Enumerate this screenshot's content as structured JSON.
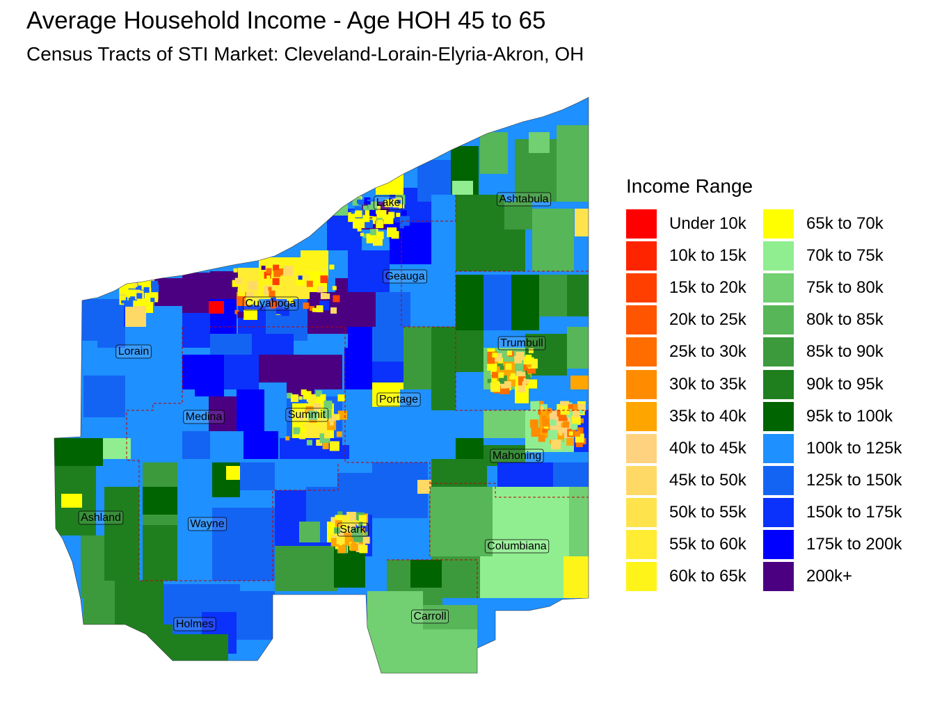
{
  "title": "Average Household Income - Age HOH 45 to 65",
  "subtitle": "Census Tracts of STI Market: Cleveland-Lorain-Elyria-Akron, OH",
  "legend": {
    "title": "Income Range",
    "items": [
      {
        "label": "Under 10k",
        "color": "#FF0000"
      },
      {
        "label": "10k to 15k",
        "color": "#FF2400"
      },
      {
        "label": "15k to 20k",
        "color": "#FF3F00"
      },
      {
        "label": "20k to 25k",
        "color": "#FF5500"
      },
      {
        "label": "25k to 30k",
        "color": "#FF6D00"
      },
      {
        "label": "30k to 35k",
        "color": "#FF8C00"
      },
      {
        "label": "35k to 40k",
        "color": "#FFA500"
      },
      {
        "label": "40k to 45k",
        "color": "#FFD27F"
      },
      {
        "label": "45k to 50k",
        "color": "#FFD966"
      },
      {
        "label": "50k to 55k",
        "color": "#FFE34D"
      },
      {
        "label": "55k to 60k",
        "color": "#FFEC33"
      },
      {
        "label": "60k to 65k",
        "color": "#FFF41A"
      },
      {
        "label": "65k to 70k",
        "color": "#FFFF00"
      },
      {
        "label": "70k to 75k",
        "color": "#90EE90"
      },
      {
        "label": "75k to 80k",
        "color": "#72CF72"
      },
      {
        "label": "80k to 85k",
        "color": "#57B657"
      },
      {
        "label": "85k to 90k",
        "color": "#3C9A3C"
      },
      {
        "label": "90k to 95k",
        "color": "#1F7F1F"
      },
      {
        "label": "95k to 100k",
        "color": "#006400"
      },
      {
        "label": "100k to 125k",
        "color": "#1E90FF"
      },
      {
        "label": "125k to 150k",
        "color": "#1464F4"
      },
      {
        "label": "150k to 175k",
        "color": "#0A32FA"
      },
      {
        "label": "175k to 200k",
        "color": "#0000FF"
      },
      {
        "label": "200k+",
        "color": "#4B0082"
      }
    ]
  },
  "counties": [
    "Lake",
    "Ashtabula",
    "Geauga",
    "Cuyahoga",
    "Lorain",
    "Trumbull",
    "Portage",
    "Medina",
    "Summit",
    "Mahoning",
    "Ashland",
    "Wayne",
    "Stark",
    "Columbiana",
    "Carroll",
    "Holmes"
  ]
}
